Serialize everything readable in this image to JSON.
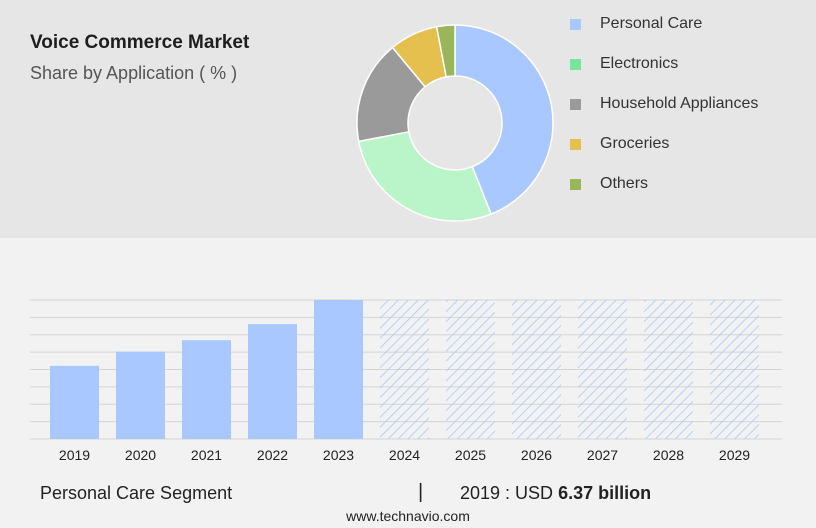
{
  "header": {
    "title": "Voice Commerce Market",
    "subtitle": "Share by Application ( % )"
  },
  "colors": {
    "top_panel_bg": "#e6e6e6",
    "page_bg": "#f2f2f2",
    "bar": "#a8c8ff",
    "hatch": "#a8c8ff"
  },
  "legend": [
    {
      "label": "Personal Care",
      "color": "#a8c8ff"
    },
    {
      "label": "Electronics",
      "color": "#77e59a"
    },
    {
      "label": "Household Appliances",
      "color": "#9a9a9a"
    },
    {
      "label": "Groceries",
      "color": "#e6c04e"
    },
    {
      "label": "Others",
      "color": "#9bb55a"
    }
  ],
  "chart_data": [
    {
      "type": "pie",
      "title": "Voice Commerce Market",
      "subtitle": "Share by Application ( % )",
      "categories": [
        "Personal Care",
        "Electronics",
        "Household Appliances",
        "Groceries",
        "Others"
      ],
      "values": [
        44,
        28,
        17,
        8,
        3
      ],
      "colors": [
        "#a8c8ff",
        "#b9f5c8",
        "#9a9a9a",
        "#e6c04e",
        "#9bb55a"
      ],
      "legend_position": "right"
    },
    {
      "type": "bar",
      "categories": [
        "2019",
        "2020",
        "2021",
        "2022",
        "2023",
        "2024",
        "2025",
        "2026",
        "2027",
        "2028",
        "2029"
      ],
      "values": [
        6.37,
        7.6,
        8.6,
        10.0,
        12.1,
        12.1,
        12.1,
        12.1,
        12.1,
        12.1,
        12.1
      ],
      "forecast": [
        false,
        false,
        false,
        false,
        false,
        true,
        true,
        true,
        true,
        true,
        true
      ],
      "ylim": [
        0,
        12.1
      ],
      "grid": true,
      "xlabel": "",
      "ylabel": ""
    }
  ],
  "footer": {
    "segment_label": "Personal Care Segment",
    "separator": "|",
    "value_prefix": "2019 : USD",
    "value_bold": "6.37 billion",
    "source": "www.technavio.com"
  }
}
